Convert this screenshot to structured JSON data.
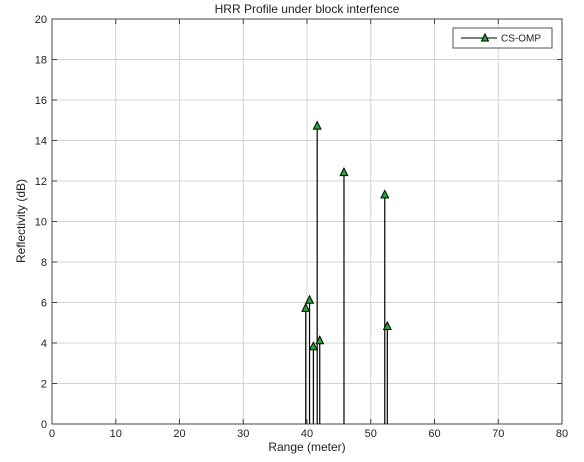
{
  "chart_data": {
    "type": "stem",
    "title": "HRR Profile under block interfence",
    "xlabel": "Range (meter)",
    "ylabel": "Reflectivity (dB)",
    "xlim": [
      0,
      80
    ],
    "ylim": [
      0,
      20
    ],
    "xticks": [
      0,
      10,
      20,
      30,
      40,
      50,
      60,
      70,
      80
    ],
    "yticks": [
      0,
      2,
      4,
      6,
      8,
      10,
      12,
      14,
      16,
      18,
      20
    ],
    "grid": true,
    "legend_position": "top-right",
    "marker": "triangle",
    "series": [
      {
        "name": "CS-OMP",
        "color": "#000000",
        "marker_color": "#22a83a",
        "x": [
          39.8,
          40.4,
          41.0,
          41.6,
          42.0,
          45.8,
          52.2,
          52.6
        ],
        "values": [
          5.7,
          6.1,
          3.8,
          14.7,
          4.1,
          12.4,
          11.3,
          4.8
        ]
      }
    ]
  }
}
